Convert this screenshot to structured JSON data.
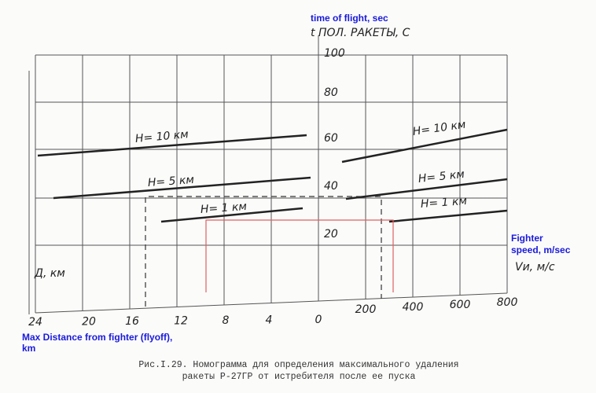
{
  "annotations": {
    "time_of_flight": "time of flight, sec",
    "fighter_speed": [
      "Fighter",
      "speed, m/sec"
    ],
    "max_distance": [
      "Max Distance from fighter (flyoff),",
      "km"
    ]
  },
  "axis_labels": {
    "time": "t ПОЛ. РАКЕТЫ, С",
    "speed": "Vи, м/с",
    "distance": "Д, км"
  },
  "time_ticks": [
    "100",
    "80",
    "60",
    "40",
    "20"
  ],
  "distance_ticks": [
    "24",
    "20",
    "16",
    "12",
    "8",
    "4",
    "0"
  ],
  "speed_ticks": [
    "200",
    "400",
    "600",
    "800"
  ],
  "curve_labels": [
    "H= 10 км",
    "H= 5 км",
    "H= 1 км",
    "H= 10 км",
    "H= 5 км",
    "H= 1 км"
  ],
  "caption": [
    "Рис.I.29. Номограмма для определения максимального удаления",
    "ракеты Р-27ГР от истребителя после ее пуска"
  ]
}
